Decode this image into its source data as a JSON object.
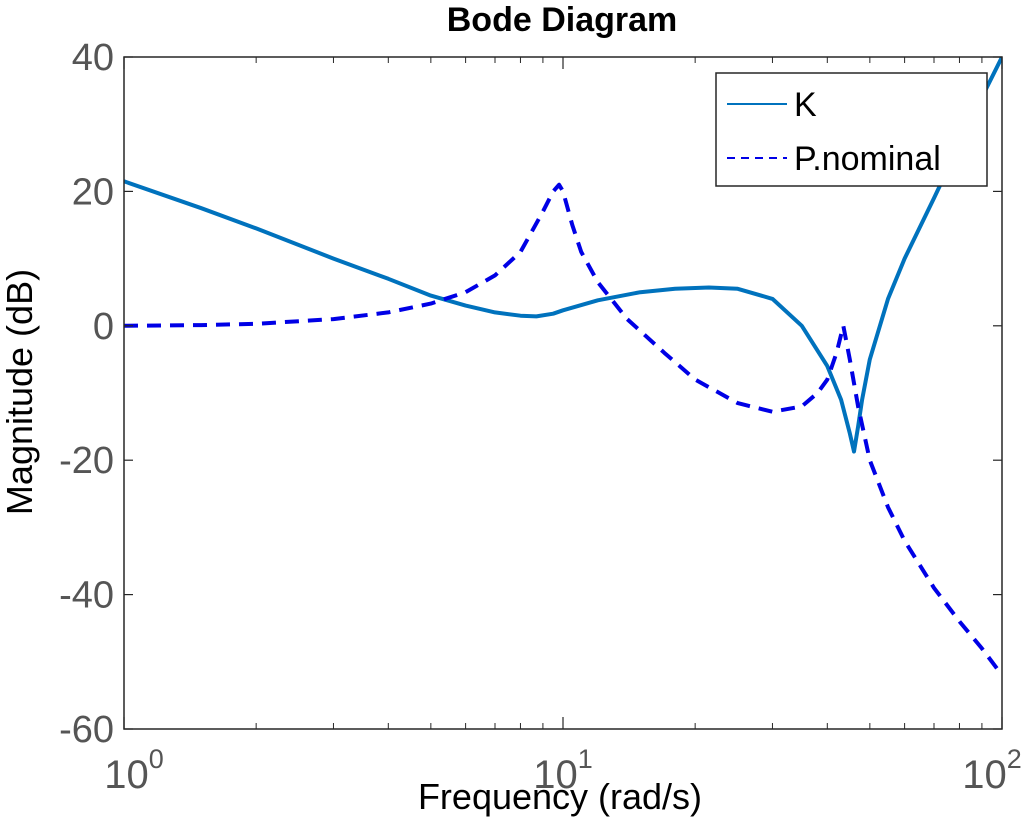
{
  "chart_data": {
    "type": "line",
    "title": "Bode Diagram",
    "xlabel": "Frequency  (rad/s)",
    "ylabel": "Magnitude (dB)",
    "xscale": "log",
    "xlim": [
      1,
      100
    ],
    "ylim": [
      -60,
      40
    ],
    "yticks": [
      "-60",
      "-40",
      "-20",
      "0",
      "20",
      "40"
    ],
    "xticks": [
      {
        "base": "10",
        "exp": "0"
      },
      {
        "base": "10",
        "exp": "1"
      },
      {
        "base": "10",
        "exp": "2"
      }
    ],
    "legend": {
      "position": "top-right"
    },
    "grid": false,
    "series": [
      {
        "name": "K",
        "color": "#0072BD",
        "style": "solid",
        "x": [
          1,
          1.5,
          2,
          3,
          4,
          5,
          6,
          7,
          8,
          8.7,
          9.5,
          10,
          12,
          15,
          18,
          21.5,
          25,
          30,
          35,
          40,
          43,
          45,
          46,
          47,
          48,
          50,
          55,
          60,
          70,
          80,
          90,
          100
        ],
        "y": [
          21.5,
          17.5,
          14.5,
          10,
          7,
          4.5,
          3,
          2,
          1.5,
          1.4,
          1.8,
          2.3,
          3.8,
          5,
          5.5,
          5.7,
          5.5,
          4,
          0,
          -6,
          -11,
          -16,
          -18.7,
          -15,
          -11,
          -5,
          4,
          10,
          19,
          27,
          34,
          40
        ]
      },
      {
        "name": "P.nominal",
        "color": "#0000E6",
        "style": "dashed",
        "x": [
          1,
          1.5,
          2,
          3,
          4,
          5,
          6,
          7,
          8,
          9,
          9.5,
          9.8,
          10,
          10.5,
          11,
          12,
          14,
          17,
          20,
          25,
          30,
          35,
          38,
          40,
          42,
          43.5,
          45,
          47,
          50,
          55,
          60,
          70,
          80,
          90,
          100
        ],
        "y": [
          0,
          0.1,
          0.3,
          1,
          2,
          3.3,
          5,
          7.5,
          11,
          17,
          20,
          21,
          20,
          15,
          11,
          6.5,
          1,
          -4,
          -8,
          -11.5,
          -12.8,
          -12,
          -10,
          -8,
          -4,
          0,
          -5,
          -12,
          -20,
          -27,
          -32,
          -39,
          -44,
          -48,
          -52
        ]
      }
    ]
  }
}
